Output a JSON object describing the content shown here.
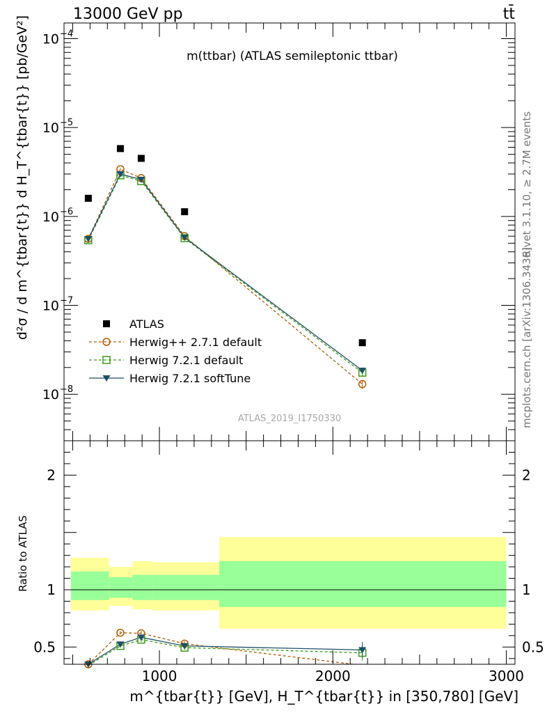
{
  "header": {
    "energy_label": "13000 GeV pp",
    "process_label": "tt̄"
  },
  "side_labels": {
    "rivet": "Rivet 3.1.10, ≥ 2.7M events",
    "mcplots": "mcplots.cern.ch [arXiv:1306.3436]"
  },
  "chart_data": [
    {
      "type": "scatter",
      "title": "m(ttbar) (ATLAS semileptonic ttbar)",
      "watermark": "ATLAS_2019_I1750330",
      "ylabel": "d²σ / d m^{tbar{t}} d H_T^{tbar{t}} [pb/GeV²]",
      "yscale": "log",
      "ylim": [
        3e-09,
        0.00015
      ],
      "xlim": [
        450,
        3050
      ],
      "yticks": [
        {
          "v": 1e-08,
          "label": "10",
          "exp": "−8"
        },
        {
          "v": 1e-07,
          "label": "10",
          "exp": "−7"
        },
        {
          "v": 1e-06,
          "label": "10",
          "exp": "−6"
        },
        {
          "v": 1e-05,
          "label": "10",
          "exp": "−5"
        },
        {
          "v": 0.0001,
          "label": "10",
          "exp": "−4"
        }
      ],
      "legend_position": "bottom-left",
      "series": [
        {
          "name": "ATLAS",
          "style": "data",
          "color": "#000000",
          "x": [
            590,
            775,
            895,
            1145,
            2170
          ],
          "y": [
            1.6e-06,
            5.8e-06,
            4.5e-06,
            1.13e-06,
            3.8e-08
          ]
        },
        {
          "name": "Herwig++ 2.7.1 default",
          "style": "circle",
          "color": "#b35a00",
          "x": [
            590,
            775,
            895,
            1145,
            2170
          ],
          "y": [
            5.6e-07,
            3.4e-06,
            2.7e-06,
            6e-07,
            1.3e-08
          ],
          "err": [
            2e-08,
            1e-07,
            1e-07,
            2e-08,
            1.5e-09
          ]
        },
        {
          "name": "Herwig 7.2.1 default",
          "style": "square",
          "color": "#3a9a1a",
          "x": [
            590,
            775,
            895,
            1145,
            2170
          ],
          "y": [
            5.4e-07,
            2.9e-06,
            2.5e-06,
            5.7e-07,
            1.75e-08
          ],
          "err": [
            2e-08,
            1e-07,
            1e-07,
            2e-08,
            1.5e-09
          ]
        },
        {
          "name": "Herwig 7.2.1 softTune",
          "style": "triangle",
          "color": "#1f4f66",
          "x": [
            590,
            775,
            895,
            1145,
            2170
          ],
          "y": [
            5.6e-07,
            3e-06,
            2.6e-06,
            5.8e-07,
            1.85e-08
          ],
          "err": [
            2e-08,
            1e-07,
            1e-07,
            2e-08,
            1.5e-09
          ]
        }
      ]
    },
    {
      "type": "scatter",
      "ylabel": "Ratio to ATLAS",
      "xlabel": "m^{tbar{t}} [GeV], H_T^{tbar{t}} in [350,780] [GeV]",
      "ylim": [
        0.35,
        2.3
      ],
      "xlim": [
        450,
        3050
      ],
      "yticks": [
        0.5,
        1,
        2
      ],
      "xticks": [
        1000,
        2000,
        3000
      ],
      "bands": {
        "bins": [
          [
            490,
            710
          ],
          [
            710,
            845
          ],
          [
            845,
            960
          ],
          [
            960,
            1345
          ],
          [
            1345,
            3000
          ]
        ],
        "yellow": [
          [
            0.82,
            1.28
          ],
          [
            0.86,
            1.2
          ],
          [
            0.83,
            1.25
          ],
          [
            0.82,
            1.24
          ],
          [
            0.66,
            1.46
          ]
        ],
        "green": [
          [
            0.91,
            1.16
          ],
          [
            0.93,
            1.11
          ],
          [
            0.91,
            1.13
          ],
          [
            0.91,
            1.13
          ],
          [
            0.85,
            1.25
          ]
        ]
      },
      "series": [
        {
          "name": "Herwig++ 2.7.1 default",
          "style": "circle",
          "color": "#b35a00",
          "x": [
            590,
            775,
            895,
            1145,
            2170
          ],
          "y": [
            0.35,
            0.625,
            0.62,
            0.53,
            0.34
          ],
          "err": [
            0.01,
            0.015,
            0.02,
            0.02,
            0.03
          ]
        },
        {
          "name": "Herwig 7.2.1 default",
          "style": "square",
          "color": "#3a9a1a",
          "x": [
            590,
            775,
            895,
            1145,
            2170
          ],
          "y": [
            0.34,
            0.51,
            0.565,
            0.495,
            0.45
          ],
          "err": [
            0.01,
            0.015,
            0.02,
            0.02,
            0.07
          ]
        },
        {
          "name": "Herwig 7.2.1 softTune",
          "style": "triangle",
          "color": "#1f4f66",
          "x": [
            590,
            775,
            895,
            1145,
            2170
          ],
          "y": [
            0.35,
            0.525,
            0.585,
            0.51,
            0.475
          ],
          "err": [
            0.01,
            0.015,
            0.02,
            0.02,
            0.07
          ]
        }
      ]
    }
  ]
}
